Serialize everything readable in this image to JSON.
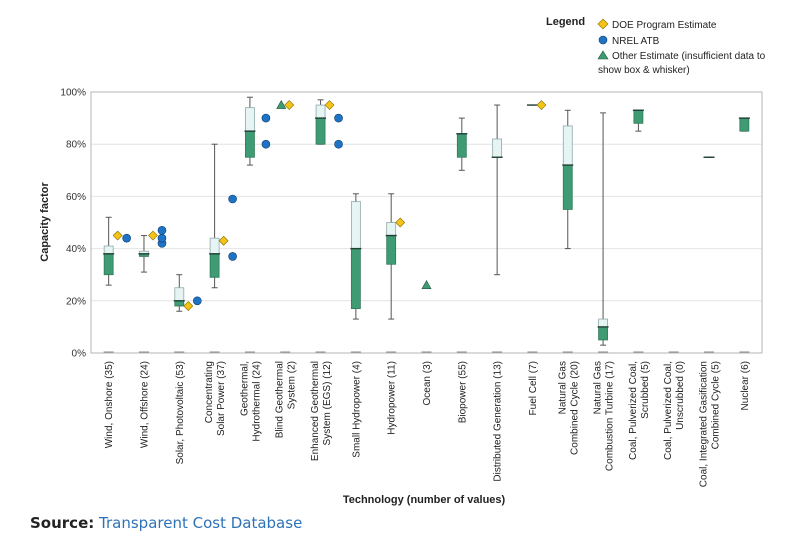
{
  "legend": {
    "title": "Legend",
    "items": [
      {
        "label": "DOE Program Estimate",
        "marker": "diamond",
        "color": "#f3c316"
      },
      {
        "label": "NREL ATB",
        "marker": "circle",
        "color": "#1f73c4"
      },
      {
        "label": "Other Estimate (insufficient data to",
        "label2": "show box & whisker)",
        "marker": "triangle",
        "color": "#3f9b73"
      }
    ]
  },
  "source": {
    "label": "Source:",
    "link": "Transparent Cost Database"
  },
  "colors": {
    "box_lower": "#3f9b73",
    "box_upper": "#e6f4f4",
    "box_edge": "#8fa9aa",
    "whisker": "#555555",
    "grid": "#e4e4e4"
  },
  "chart_data": {
    "type": "box",
    "ylabel": "Capacity factor",
    "xlabel": "Technology (number of values)",
    "ylim": [
      0,
      100
    ],
    "yticks": [
      0,
      20,
      40,
      60,
      80,
      100
    ],
    "ytick_labels": [
      "0%",
      "20%",
      "40%",
      "60%",
      "80%",
      "100%"
    ],
    "grid": true,
    "categories": [
      {
        "label": "Wind, Onshore (35)",
        "lines": [
          "Wind, Onshore (35)"
        ],
        "min": 26,
        "q1": 30,
        "median": 38,
        "q3": 41,
        "max": 52,
        "doe": [
          45
        ],
        "nrel": [
          44
        ],
        "other": []
      },
      {
        "label": "Wind, Offshore (24)",
        "lines": [
          "Wind, Offshore (24)"
        ],
        "min": 31,
        "q1": 37,
        "median": 38,
        "q3": 39,
        "max": 45,
        "doe": [
          45
        ],
        "nrel": [
          42,
          44,
          47
        ],
        "other": []
      },
      {
        "label": "Solar, Photovoltaic (53)",
        "lines": [
          "Solar, Photovoltaic (53)"
        ],
        "min": 16,
        "q1": 18,
        "median": 20,
        "q3": 25,
        "max": 30,
        "doe": [
          18
        ],
        "nrel": [
          20
        ],
        "other": []
      },
      {
        "label": "Concentrating Solar Power (37)",
        "lines": [
          "Concentrating",
          "Solar Power (37)"
        ],
        "min": 25,
        "q1": 29,
        "median": 38,
        "q3": 44,
        "max": 80,
        "doe": [
          43
        ],
        "nrel": [
          37,
          59
        ],
        "other": []
      },
      {
        "label": "Geothermal, Hydrothermal (24)",
        "lines": [
          "Geothermal,",
          "Hydrothermal (24)"
        ],
        "min": 72,
        "q1": 75,
        "median": 85,
        "q3": 94,
        "max": 98,
        "doe": [],
        "nrel": [
          80,
          90
        ],
        "other": []
      },
      {
        "label": "Blind Geothermal System (2)",
        "lines": [
          "Blind Geothermal",
          "System (2)"
        ],
        "min": null,
        "q1": null,
        "median": null,
        "q3": null,
        "max": null,
        "doe": [
          95
        ],
        "nrel": [],
        "other": [
          95
        ]
      },
      {
        "label": "Enhanced Geothermal System (EGS) (12)",
        "lines": [
          "Enhanced Geothermal",
          "System (EGS) (12)"
        ],
        "min": 80,
        "q1": 80,
        "median": 90,
        "q3": 95,
        "max": 97,
        "doe": [
          95
        ],
        "nrel": [
          80,
          90
        ],
        "other": []
      },
      {
        "label": "Small Hydropower (4)",
        "lines": [
          "Small Hydropower (4)"
        ],
        "min": 13,
        "q1": 17,
        "median": 40,
        "q3": 58,
        "max": 61,
        "doe": [],
        "nrel": [],
        "other": []
      },
      {
        "label": "Hydropower (11)",
        "lines": [
          "Hydropower (11)"
        ],
        "min": 13,
        "q1": 34,
        "median": 45,
        "q3": 50,
        "max": 61,
        "doe": [
          50
        ],
        "nrel": [],
        "other": []
      },
      {
        "label": "Ocean (3)",
        "lines": [
          "Ocean (3)"
        ],
        "min": null,
        "q1": null,
        "median": null,
        "q3": null,
        "max": null,
        "doe": [],
        "nrel": [],
        "other": [
          26
        ]
      },
      {
        "label": "Biopower (55)",
        "lines": [
          "Biopower (55)"
        ],
        "min": 70,
        "q1": 75,
        "median": 84,
        "q3": 84,
        "max": 90,
        "doe": [],
        "nrel": [],
        "other": []
      },
      {
        "label": "Distributed Generation (13)",
        "lines": [
          "Distributed Generation (13)"
        ],
        "min": 30,
        "q1": 75,
        "median": 75,
        "q3": 82,
        "max": 95,
        "doe": [],
        "nrel": [],
        "other": []
      },
      {
        "label": "Fuel Cell (7)",
        "lines": [
          "Fuel Cell (7)"
        ],
        "min": 95,
        "q1": 95,
        "median": 95,
        "q3": 95,
        "max": 95,
        "doe": [
          95
        ],
        "nrel": [],
        "other": []
      },
      {
        "label": "Natural Gas Combined Cycle (20)",
        "lines": [
          "Natural Gas",
          "Combined Cycle (20)"
        ],
        "min": 40,
        "q1": 55,
        "median": 72,
        "q3": 87,
        "max": 93,
        "doe": [],
        "nrel": [],
        "other": []
      },
      {
        "label": "Natural Gas Combustion Turbine (17)",
        "lines": [
          "Natural Gas",
          "Combustion Turbine (17)"
        ],
        "min": 3,
        "q1": 5,
        "median": 10,
        "q3": 13,
        "max": 92,
        "doe": [],
        "nrel": [],
        "other": []
      },
      {
        "label": "Coal, Pulverized Coal, Scrubbed (5)",
        "lines": [
          "Coal, Pulverized Coal,",
          "Scrubbed (5)"
        ],
        "min": 85,
        "q1": 88,
        "median": 93,
        "q3": 93,
        "max": 93,
        "doe": [],
        "nrel": [],
        "other": []
      },
      {
        "label": "Coal, Pulverized Coal, Unscrubbed (0)",
        "lines": [
          "Coal, Pulverized Coal,",
          "Unscrubbed (0)"
        ],
        "min": null,
        "q1": null,
        "median": null,
        "q3": null,
        "max": null,
        "doe": [],
        "nrel": [],
        "other": []
      },
      {
        "label": "Coal, Integrated Gasification Combined Cycle (5)",
        "lines": [
          "Coal, Integrated Gasification",
          "Combined Cycle (5)"
        ],
        "min": 75,
        "q1": 75,
        "median": 75,
        "q3": 75,
        "max": 75,
        "doe": [],
        "nrel": [],
        "other": []
      },
      {
        "label": "Nuclear (6)",
        "lines": [
          "Nuclear (6)"
        ],
        "min": 85,
        "q1": 85,
        "median": 90,
        "q3": 90,
        "max": 90,
        "doe": [],
        "nrel": [],
        "other": []
      }
    ]
  }
}
